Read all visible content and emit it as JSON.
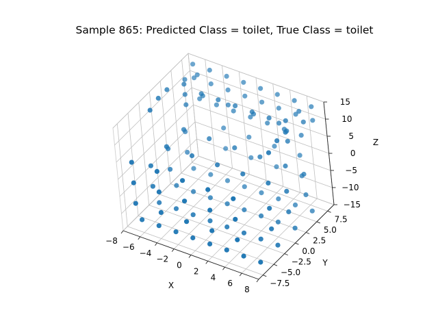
{
  "chart_data": {
    "type": "scatter",
    "projection": "3d",
    "title": "Sample 865: Predicted Class = toilet, True Class = toilet",
    "xlabel": "X",
    "ylabel": "Y",
    "zlabel": "Z",
    "xlim": [
      -8,
      8
    ],
    "ylim": [
      -8.5,
      9
    ],
    "zlim": [
      -15,
      15
    ],
    "xticks": [
      "−8",
      "−6",
      "−4",
      "−2",
      "0",
      "2",
      "4",
      "6",
      "8"
    ],
    "yticks": [
      "−7.5",
      "−5.0",
      "−2.5",
      "0.0",
      "2.5",
      "5.0",
      "7.5"
    ],
    "zticks": [
      "−15",
      "−10",
      "−5",
      "0",
      "5",
      "10",
      "15"
    ],
    "grid": true,
    "marker_color": "#1f77b4",
    "points": [
      {
        "x": -7,
        "y": -6,
        "z": -14
      },
      {
        "x": -5,
        "y": -6,
        "z": -14
      },
      {
        "x": -3,
        "y": -6,
        "z": -14
      },
      {
        "x": -1,
        "y": -6,
        "z": -14
      },
      {
        "x": 1,
        "y": -6,
        "z": -14
      },
      {
        "x": 3,
        "y": -6,
        "z": -14
      },
      {
        "x": 5,
        "y": -6,
        "z": -14
      },
      {
        "x": 7,
        "y": -6,
        "z": -14
      },
      {
        "x": -7,
        "y": -2,
        "z": -14
      },
      {
        "x": -5,
        "y": -2,
        "z": -14
      },
      {
        "x": -3,
        "y": -2,
        "z": -14
      },
      {
        "x": -1,
        "y": -2,
        "z": -14
      },
      {
        "x": 1,
        "y": -2,
        "z": -14
      },
      {
        "x": 3,
        "y": -2,
        "z": -14
      },
      {
        "x": 5,
        "y": -2,
        "z": -14
      },
      {
        "x": 7,
        "y": -2,
        "z": -14
      },
      {
        "x": -7,
        "y": 2,
        "z": -14
      },
      {
        "x": -5,
        "y": 2,
        "z": -14
      },
      {
        "x": -3,
        "y": 2,
        "z": -14
      },
      {
        "x": -1,
        "y": 2,
        "z": -14
      },
      {
        "x": 1,
        "y": 2,
        "z": -14
      },
      {
        "x": 3,
        "y": 2,
        "z": -14
      },
      {
        "x": 5,
        "y": 2,
        "z": -14
      },
      {
        "x": 7,
        "y": 2,
        "z": -14
      },
      {
        "x": -7,
        "y": 6,
        "z": -14
      },
      {
        "x": -5,
        "y": 6,
        "z": -14
      },
      {
        "x": -3,
        "y": 6,
        "z": -14
      },
      {
        "x": -1,
        "y": 6,
        "z": -14
      },
      {
        "x": 1,
        "y": 6,
        "z": -14
      },
      {
        "x": 3,
        "y": 6,
        "z": -14
      },
      {
        "x": 5,
        "y": 6,
        "z": -14
      },
      {
        "x": 7,
        "y": 6,
        "z": -14
      },
      {
        "x": -7,
        "y": -7,
        "z": -8
      },
      {
        "x": -7,
        "y": -7,
        "z": -2
      },
      {
        "x": -7,
        "y": -7,
        "z": 4
      },
      {
        "x": -4,
        "y": -7,
        "z": -8
      },
      {
        "x": -4,
        "y": -7,
        "z": -2
      },
      {
        "x": -4,
        "y": -7,
        "z": 4
      },
      {
        "x": -1,
        "y": -7,
        "z": -8
      },
      {
        "x": -1,
        "y": -7,
        "z": -2
      },
      {
        "x": -1,
        "y": -7,
        "z": 4
      },
      {
        "x": 2,
        "y": -7,
        "z": -8
      },
      {
        "x": 2,
        "y": -7,
        "z": -2
      },
      {
        "x": 2,
        "y": -7,
        "z": 4
      },
      {
        "x": 5,
        "y": -7,
        "z": -8
      },
      {
        "x": 5,
        "y": -7,
        "z": -2
      },
      {
        "x": 5,
        "y": -7,
        "z": 4
      },
      {
        "x": -7,
        "y": -3,
        "z": -8
      },
      {
        "x": -7,
        "y": -3,
        "z": -2
      },
      {
        "x": -7,
        "y": 1,
        "z": -8
      },
      {
        "x": -7,
        "y": 1,
        "z": -2
      },
      {
        "x": -7,
        "y": 5,
        "z": -8
      },
      {
        "x": -7,
        "y": 5,
        "z": -2
      },
      {
        "x": 7,
        "y": -3,
        "z": -8
      },
      {
        "x": 7,
        "y": -3,
        "z": -2
      },
      {
        "x": 7,
        "y": 1,
        "z": -8
      },
      {
        "x": 7,
        "y": 1,
        "z": -2
      },
      {
        "x": 7,
        "y": 5,
        "z": -8
      },
      {
        "x": 7,
        "y": 5,
        "z": -2
      },
      {
        "x": -4,
        "y": 8,
        "z": -8
      },
      {
        "x": -4,
        "y": 8,
        "z": -2
      },
      {
        "x": -1,
        "y": 8,
        "z": -8
      },
      {
        "x": -1,
        "y": 8,
        "z": -2
      },
      {
        "x": 2,
        "y": 8,
        "z": -8
      },
      {
        "x": 2,
        "y": 8,
        "z": -2
      },
      {
        "x": 5,
        "y": 8,
        "z": -8
      },
      {
        "x": 5,
        "y": 8,
        "z": -2
      },
      {
        "x": -6,
        "y": -1,
        "z": 2
      },
      {
        "x": -3,
        "y": -1,
        "z": 2
      },
      {
        "x": 0,
        "y": -1,
        "z": 2
      },
      {
        "x": 3,
        "y": -1,
        "z": 2
      },
      {
        "x": 6,
        "y": -1,
        "z": 2
      },
      {
        "x": -6,
        "y": 3,
        "z": 2
      },
      {
        "x": -3,
        "y": 3,
        "z": 2
      },
      {
        "x": 0,
        "y": 3,
        "z": 2
      },
      {
        "x": 3,
        "y": 3,
        "z": 2
      },
      {
        "x": 6,
        "y": 3,
        "z": 2
      },
      {
        "x": -7,
        "y": 8,
        "z": 10
      },
      {
        "x": -5,
        "y": 8,
        "z": 10
      },
      {
        "x": -3,
        "y": 8,
        "z": 10
      },
      {
        "x": -1,
        "y": 8,
        "z": 10
      },
      {
        "x": 1,
        "y": 8,
        "z": 10
      },
      {
        "x": 3,
        "y": 8,
        "z": 10
      },
      {
        "x": 5,
        "y": 8,
        "z": 10
      },
      {
        "x": 7,
        "y": 8,
        "z": 10
      },
      {
        "x": -7,
        "y": 8,
        "z": 14
      },
      {
        "x": -5,
        "y": 8,
        "z": 14
      },
      {
        "x": -3,
        "y": 8,
        "z": 14
      },
      {
        "x": -1,
        "y": 8,
        "z": 14
      },
      {
        "x": 1,
        "y": 8,
        "z": 14
      },
      {
        "x": 3,
        "y": 8,
        "z": 14
      },
      {
        "x": 5,
        "y": 8,
        "z": 14
      },
      {
        "x": 7,
        "y": 8,
        "z": 14
      },
      {
        "x": -7,
        "y": 6,
        "z": 12
      },
      {
        "x": -6,
        "y": 7,
        "z": 13
      },
      {
        "x": 7,
        "y": 6,
        "z": 12
      },
      {
        "x": 6,
        "y": 7,
        "z": 13
      },
      {
        "x": -6,
        "y": 7,
        "z": 6
      },
      {
        "x": -4,
        "y": 7,
        "z": 6
      },
      {
        "x": -2,
        "y": 7,
        "z": 6
      },
      {
        "x": 0,
        "y": 7,
        "z": 6
      },
      {
        "x": 2,
        "y": 7,
        "z": 6
      },
      {
        "x": 4,
        "y": 7,
        "z": 6
      },
      {
        "x": 6,
        "y": 7,
        "z": 6
      },
      {
        "x": -5,
        "y": 6,
        "z": 9
      },
      {
        "x": -2,
        "y": 6,
        "z": 9
      },
      {
        "x": 1,
        "y": 6,
        "z": 9
      },
      {
        "x": 4,
        "y": 6,
        "z": 9
      },
      {
        "x": -6,
        "y": 4,
        "z": 8
      },
      {
        "x": -6,
        "y": 4,
        "z": 11
      },
      {
        "x": -6,
        "y": 4,
        "z": 14
      },
      {
        "x": 6,
        "y": 4,
        "z": 8
      },
      {
        "x": 6,
        "y": 4,
        "z": 11
      },
      {
        "x": 6,
        "y": 4,
        "z": 14
      },
      {
        "x": -4,
        "y": 4,
        "z": 13
      },
      {
        "x": -2,
        "y": 4,
        "z": 13
      },
      {
        "x": 0,
        "y": 4,
        "z": 13
      },
      {
        "x": 2,
        "y": 4,
        "z": 13
      },
      {
        "x": 4,
        "y": 4,
        "z": 13
      },
      {
        "x": -7,
        "y": 2,
        "z": 14
      },
      {
        "x": -7,
        "y": 0,
        "z": 14
      },
      {
        "x": 7,
        "y": 2,
        "z": 14
      },
      {
        "x": 7,
        "y": 0,
        "z": 14
      },
      {
        "x": -7,
        "y": -2,
        "z": 13
      },
      {
        "x": 7,
        "y": -2,
        "z": 13
      }
    ]
  }
}
